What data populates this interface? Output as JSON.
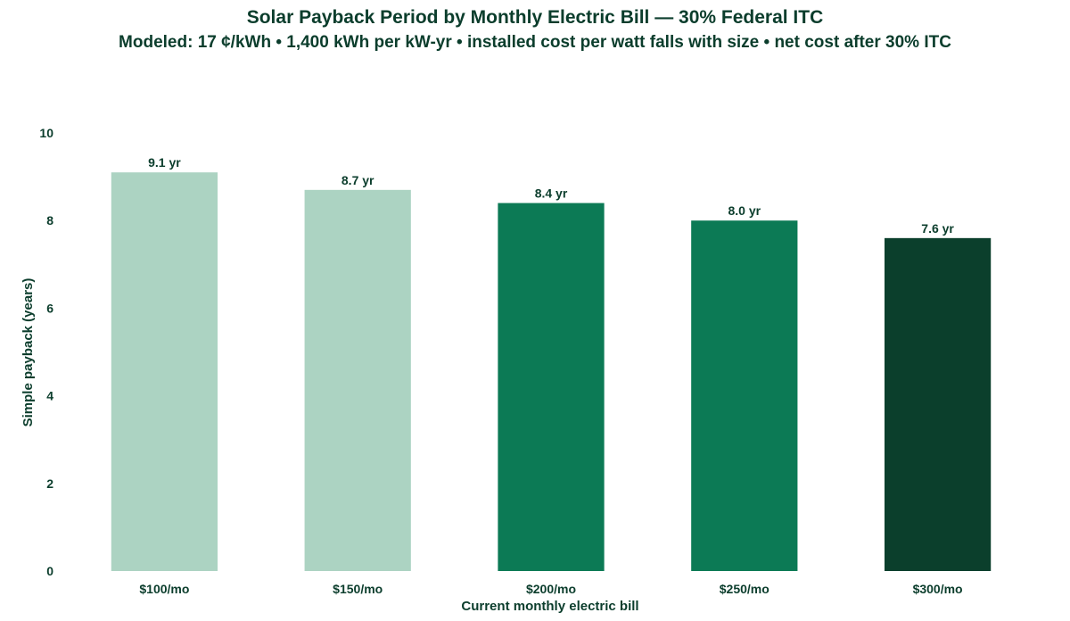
{
  "chart_data": {
    "type": "bar",
    "title": "Solar Payback Period by Monthly Electric Bill — 30% Federal ITC",
    "subtitle": "Modeled: 17 ¢/kWh  •  1,400 kWh per kW-yr  •  installed cost per watt falls with size  •  net cost after 30% ITC",
    "xlabel": "Current monthly electric bill",
    "ylabel": "Simple payback (years)",
    "categories": [
      "$100/mo",
      "$150/mo",
      "$200/mo",
      "$250/mo",
      "$300/mo"
    ],
    "values": [
      9.1,
      8.7,
      8.4,
      8.0,
      7.6
    ],
    "data_labels": [
      "9.1 yr",
      "8.7 yr",
      "8.4 yr",
      "8.0 yr",
      "7.6 yr"
    ],
    "bar_colors": [
      "#acd3c2",
      "#acd3c2",
      "#0c7a55",
      "#0c7a55",
      "#0b3f2c"
    ],
    "ylim": [
      0,
      10
    ],
    "yticks": [
      0,
      2,
      4,
      6,
      8,
      10
    ],
    "grid": false,
    "legend": "none"
  }
}
